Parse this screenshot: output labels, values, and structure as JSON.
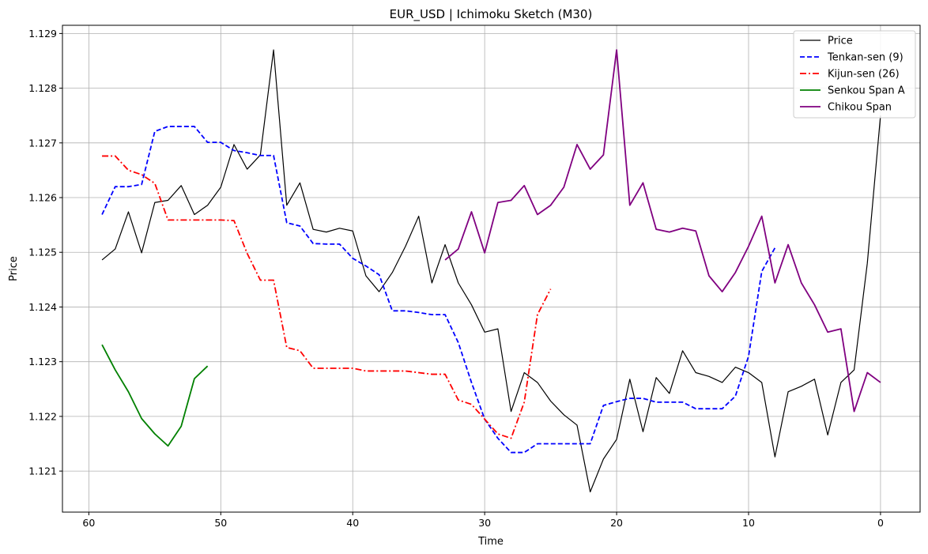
{
  "chart_data": {
    "type": "line",
    "title": "EUR_USD | Ichimoku Sketch (M30)",
    "xlabel": "Time",
    "ylabel": "Price",
    "xlim": [
      62,
      -3
    ],
    "ylim": [
      1.12025,
      1.12915
    ],
    "x_reversed": true,
    "grid": true,
    "legend_position": "top-right",
    "x_ticks": [
      60,
      50,
      40,
      30,
      20,
      10,
      0
    ],
    "y_ticks": [
      1.121,
      1.122,
      1.123,
      1.124,
      1.125,
      1.126,
      1.127,
      1.128,
      1.129
    ],
    "y_tick_labels": [
      "1.121",
      "1.122",
      "1.123",
      "1.124",
      "1.125",
      "1.126",
      "1.127",
      "1.128",
      "1.129"
    ],
    "series": [
      {
        "name": "Price",
        "color": "#000000",
        "style": "solid",
        "x": [
          59,
          58,
          57,
          56,
          55,
          54,
          53,
          52,
          51,
          50,
          49,
          48,
          47,
          46,
          45,
          44,
          43,
          42,
          41,
          40,
          39,
          38,
          37,
          36,
          35,
          34,
          33,
          32,
          31,
          30,
          29,
          28,
          27,
          26,
          25,
          24,
          23,
          22,
          21,
          20,
          19,
          18,
          17,
          16,
          15,
          14,
          13,
          12,
          11,
          10,
          9,
          8,
          7,
          6,
          5,
          4,
          3,
          2,
          1,
          0
        ],
        "y": [
          1.12486,
          1.12506,
          1.12574,
          1.12499,
          1.12591,
          1.12595,
          1.12622,
          1.12569,
          1.12586,
          1.12619,
          1.12697,
          1.12652,
          1.12678,
          1.1287,
          1.12586,
          1.12627,
          1.12542,
          1.12537,
          1.12544,
          1.12539,
          1.12457,
          1.12428,
          1.12463,
          1.12511,
          1.12566,
          1.12444,
          1.12514,
          1.12444,
          1.12404,
          1.12354,
          1.1236,
          1.12209,
          1.1228,
          1.12262,
          1.12228,
          1.12203,
          1.12184,
          1.12062,
          1.12122,
          1.12158,
          1.12268,
          1.12172,
          1.12271,
          1.12242,
          1.1232,
          1.1228,
          1.12273,
          1.12262,
          1.1229,
          1.1228,
          1.12262,
          1.12126,
          1.12245,
          1.12255,
          1.12268,
          1.12166,
          1.12262,
          1.12285,
          1.1248,
          1.1275
        ]
      },
      {
        "name": "Tenkan-sen (9)",
        "color": "#0000ff",
        "style": "dashed",
        "x": [
          59,
          58,
          57,
          56,
          55,
          54,
          53,
          52,
          51,
          50,
          49,
          48,
          47,
          46,
          45,
          44,
          43,
          42,
          41,
          40,
          39,
          38,
          37,
          36,
          35,
          34,
          33,
          32,
          31,
          30,
          29,
          28,
          27,
          26,
          25,
          24,
          23,
          22,
          21,
          20,
          19,
          18,
          17,
          16,
          15,
          14,
          13,
          12,
          11,
          10,
          9,
          8
        ],
        "y": [
          1.12569,
          1.1262,
          1.1262,
          1.12624,
          1.12721,
          1.1273,
          1.1273,
          1.1273,
          1.12701,
          1.12701,
          1.12686,
          1.12682,
          1.12677,
          1.12677,
          1.12554,
          1.12548,
          1.12516,
          1.12515,
          1.12515,
          1.12489,
          1.12475,
          1.12459,
          1.12393,
          1.12393,
          1.1239,
          1.12386,
          1.12386,
          1.12335,
          1.12262,
          1.12195,
          1.1216,
          1.12134,
          1.12134,
          1.1215,
          1.1215,
          1.1215,
          1.1215,
          1.1215,
          1.1222,
          1.12227,
          1.12233,
          1.12233,
          1.12226,
          1.12226,
          1.12226,
          1.12214,
          1.12214,
          1.12214,
          1.12237,
          1.1231,
          1.12465,
          1.12508
        ]
      },
      {
        "name": "Kijun-sen (26)",
        "color": "#ff0000",
        "style": "dashdot",
        "x": [
          59,
          58,
          57,
          56,
          55,
          54,
          53,
          52,
          51,
          50,
          49,
          48,
          47,
          46,
          45,
          44,
          43,
          42,
          41,
          40,
          39,
          38,
          37,
          36,
          35,
          34,
          33,
          32,
          31,
          30,
          29,
          28,
          27,
          26,
          25
        ],
        "y": [
          1.12676,
          1.12676,
          1.1265,
          1.12642,
          1.12626,
          1.12559,
          1.12559,
          1.12559,
          1.12559,
          1.12559,
          1.12558,
          1.12498,
          1.12449,
          1.12449,
          1.12326,
          1.1232,
          1.12288,
          1.12288,
          1.12288,
          1.12288,
          1.12283,
          1.12283,
          1.12283,
          1.12283,
          1.1228,
          1.12277,
          1.12277,
          1.1223,
          1.12222,
          1.12195,
          1.12168,
          1.1216,
          1.12226,
          1.12386,
          1.12433
        ]
      },
      {
        "name": "Senkou Span A",
        "color": "#008000",
        "style": "solid",
        "x": [
          59,
          58,
          57,
          56,
          55,
          54,
          53,
          52,
          51
        ],
        "y": [
          1.12331,
          1.12285,
          1.12245,
          1.12196,
          1.12168,
          1.12146,
          1.12182,
          1.12269,
          1.12292
        ]
      },
      {
        "name": "Chikou Span",
        "color": "#800080",
        "style": "solid",
        "x": [
          33,
          32,
          31,
          30,
          29,
          28,
          27,
          26,
          25,
          24,
          23,
          22,
          21,
          20,
          19,
          18,
          17,
          16,
          15,
          14,
          13,
          12,
          11,
          10,
          9,
          8,
          7,
          6,
          5,
          4,
          3,
          2,
          1,
          0
        ],
        "y": [
          1.12486,
          1.12506,
          1.12574,
          1.12499,
          1.12591,
          1.12595,
          1.12622,
          1.12569,
          1.12586,
          1.12619,
          1.12697,
          1.12652,
          1.12678,
          1.1287,
          1.12586,
          1.12627,
          1.12542,
          1.12537,
          1.12544,
          1.12539,
          1.12457,
          1.12428,
          1.12463,
          1.12511,
          1.12566,
          1.12444,
          1.12514,
          1.12444,
          1.12404,
          1.12354,
          1.1236,
          1.12209,
          1.1228,
          1.12262
        ]
      }
    ]
  }
}
